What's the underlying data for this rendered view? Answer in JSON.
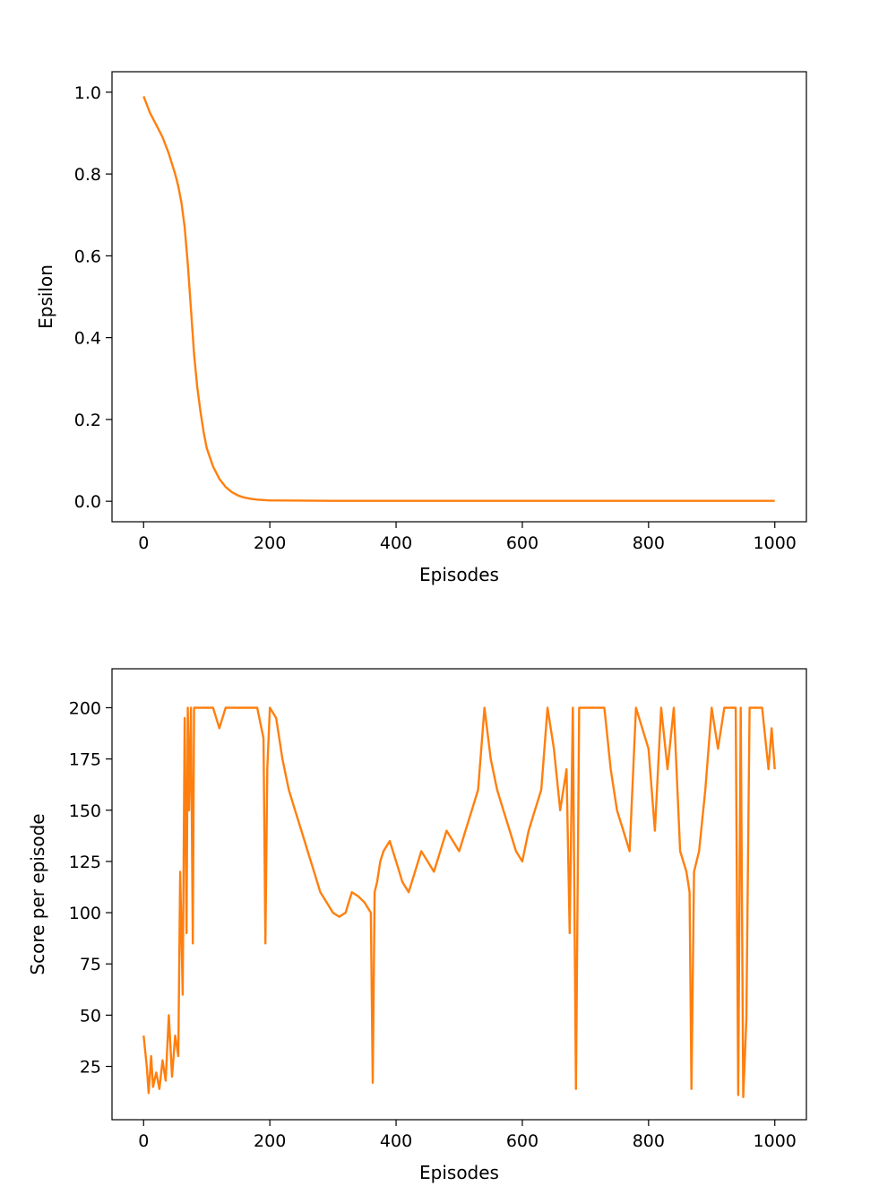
{
  "colors": {
    "line": "#ff7f0e",
    "axes": "#000000",
    "background": "#ffffff"
  },
  "chart_data": [
    {
      "type": "line",
      "xlabel": "Episodes",
      "ylabel": "Epsilon",
      "xlim": [
        0,
        1000
      ],
      "ylim": [
        0.0,
        1.0
      ],
      "grid": false,
      "xticks": [
        "0",
        "200",
        "400",
        "600",
        "800",
        "1000"
      ],
      "yticks": [
        "0.0",
        "0.2",
        "0.4",
        "0.6",
        "0.8",
        "1.0"
      ],
      "series": [
        {
          "x": [
            0,
            5,
            10,
            20,
            30,
            40,
            50,
            55,
            60,
            65,
            70,
            75,
            80,
            85,
            90,
            95,
            100,
            110,
            120,
            130,
            140,
            150,
            160,
            170,
            180,
            190,
            200,
            300,
            400,
            500,
            600,
            700,
            800,
            900,
            1000
          ],
          "y": [
            0.99,
            0.97,
            0.95,
            0.92,
            0.89,
            0.85,
            0.8,
            0.77,
            0.73,
            0.67,
            0.58,
            0.47,
            0.36,
            0.28,
            0.22,
            0.17,
            0.13,
            0.085,
            0.055,
            0.035,
            0.022,
            0.014,
            0.009,
            0.006,
            0.004,
            0.003,
            0.002,
            0.001,
            0.001,
            0.001,
            0.001,
            0.001,
            0.001,
            0.001,
            0.001
          ]
        }
      ]
    },
    {
      "type": "line",
      "xlabel": "Episodes",
      "ylabel": "Score per episode",
      "xlim": [
        0,
        1000
      ],
      "ylim": [
        9,
        209
      ],
      "grid": false,
      "xticks": [
        "0",
        "200",
        "400",
        "600",
        "800",
        "1000"
      ],
      "yticks": [
        "25",
        "50",
        "75",
        "100",
        "125",
        "150",
        "175",
        "200"
      ],
      "series": [
        {
          "x": [
            0,
            5,
            8,
            12,
            15,
            20,
            25,
            30,
            35,
            40,
            45,
            50,
            55,
            58,
            62,
            65,
            68,
            70,
            72,
            75,
            78,
            80,
            85,
            90,
            100,
            110,
            120,
            130,
            140,
            150,
            160,
            170,
            180,
            190,
            193,
            196,
            200,
            210,
            220,
            230,
            240,
            250,
            260,
            270,
            280,
            290,
            300,
            310,
            320,
            330,
            340,
            350,
            360,
            363,
            366,
            370,
            375,
            380,
            390,
            400,
            410,
            420,
            430,
            440,
            450,
            460,
            470,
            480,
            490,
            500,
            510,
            520,
            530,
            540,
            550,
            560,
            570,
            580,
            590,
            600,
            610,
            620,
            630,
            640,
            650,
            660,
            670,
            675,
            680,
            685,
            690,
            700,
            710,
            720,
            730,
            740,
            750,
            760,
            770,
            780,
            790,
            800,
            810,
            820,
            830,
            840,
            850,
            860,
            865,
            868,
            872,
            880,
            890,
            900,
            910,
            920,
            930,
            938,
            942,
            946,
            950,
            955,
            960,
            970,
            980,
            990,
            995,
            1000
          ],
          "y": [
            40,
            25,
            12,
            30,
            15,
            22,
            14,
            28,
            18,
            50,
            20,
            40,
            30,
            120,
            60,
            195,
            90,
            200,
            150,
            200,
            85,
            200,
            200,
            200,
            200,
            200,
            190,
            200,
            200,
            200,
            200,
            200,
            200,
            185,
            85,
            170,
            200,
            195,
            175,
            160,
            150,
            140,
            130,
            120,
            110,
            105,
            100,
            98,
            100,
            110,
            108,
            105,
            100,
            17,
            110,
            115,
            125,
            130,
            135,
            125,
            115,
            110,
            120,
            130,
            125,
            120,
            130,
            140,
            135,
            130,
            140,
            150,
            160,
            200,
            175,
            160,
            150,
            140,
            130,
            125,
            140,
            150,
            160,
            200,
            180,
            150,
            170,
            90,
            200,
            14,
            200,
            200,
            200,
            200,
            200,
            170,
            150,
            140,
            130,
            200,
            190,
            180,
            140,
            200,
            170,
            200,
            130,
            120,
            110,
            14,
            120,
            130,
            160,
            200,
            180,
            200,
            200,
            200,
            11,
            200,
            10,
            48,
            200,
            200,
            200,
            170,
            190,
            170
          ]
        }
      ]
    }
  ]
}
